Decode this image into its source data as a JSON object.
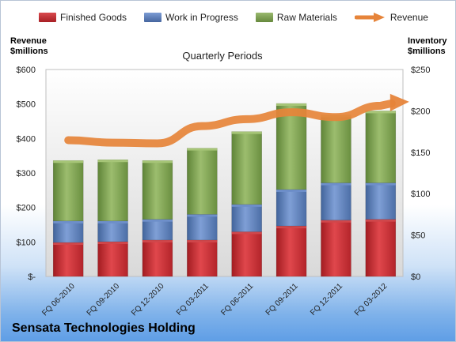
{
  "header": {
    "left_axis_title_line1": "Revenue",
    "left_axis_title_line2": "$millions",
    "right_axis_title_line1": "Inventory",
    "right_axis_title_line2": "$millions",
    "company": "Sensata Technologies Holding"
  },
  "chart_data": {
    "type": "bar",
    "title": "Quarterly Periods",
    "categories": [
      "FQ 06-2010",
      "FQ 09-2010",
      "FQ 12-2010",
      "FQ 03-2011",
      "FQ 06-2011",
      "FQ 09-2011",
      "FQ 12-2011",
      "FQ 03-2012"
    ],
    "series": [
      {
        "name": "Finished Goods",
        "axis": "right",
        "stacked": true,
        "color": "#c0282d",
        "values": [
          41,
          42,
          44,
          44,
          54,
          61,
          68,
          69
        ]
      },
      {
        "name": "Work in Progress",
        "axis": "right",
        "stacked": true,
        "color": "#5a7fc0",
        "values": [
          26,
          25,
          25,
          31,
          33,
          44,
          45,
          44
        ]
      },
      {
        "name": "Raw Materials",
        "axis": "right",
        "stacked": true,
        "color": "#7ea350",
        "values": [
          73,
          74,
          71,
          80,
          88,
          104,
          82,
          87
        ]
      },
      {
        "name": "Revenue",
        "axis": "left",
        "type": "line",
        "color": "#e6843a",
        "values": [
          395,
          388,
          386,
          436,
          456,
          476,
          462,
          495
        ]
      }
    ],
    "left_axis": {
      "label": "Revenue $millions",
      "ylim": [
        0,
        600
      ],
      "ticks": [
        0,
        100,
        200,
        300,
        400,
        500,
        600
      ],
      "tick_labels": [
        "$-",
        "$100",
        "$200",
        "$300",
        "$400",
        "$500",
        "$600"
      ]
    },
    "right_axis": {
      "label": "Inventory $millions",
      "ylim": [
        0,
        250
      ],
      "ticks": [
        0,
        50,
        100,
        150,
        200,
        250
      ],
      "tick_labels": [
        "$0",
        "$50",
        "$100",
        "$150",
        "$200",
        "$250"
      ]
    },
    "legend_position": "top",
    "grid": false
  }
}
